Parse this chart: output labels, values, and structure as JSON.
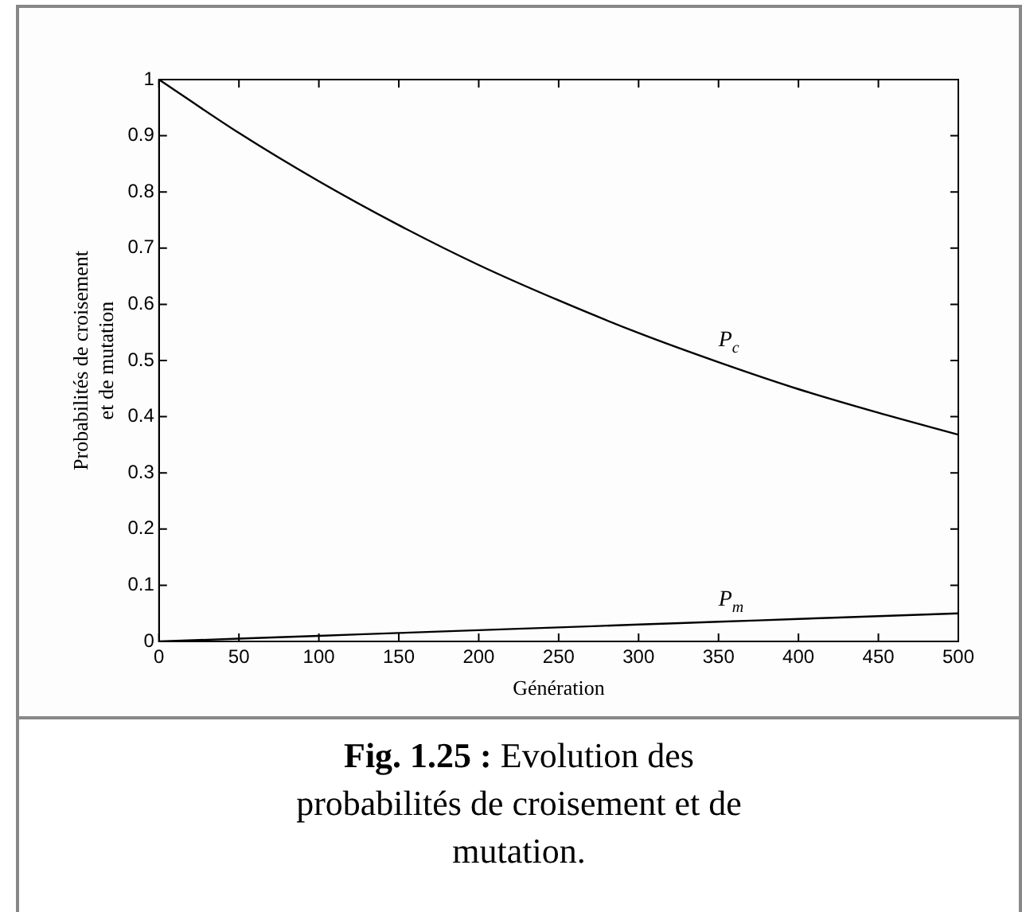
{
  "chart_data": {
    "type": "line",
    "xlabel": "Génération",
    "ylabel": "Probabilités de croisement et de mutation",
    "x": [
      0,
      50,
      100,
      150,
      200,
      250,
      300,
      350,
      400,
      450,
      500
    ],
    "series": [
      {
        "name": "P$_{c}$",
        "color": "#000000",
        "values": [
          1,
          0.905,
          0.819,
          0.741,
          0.67,
          0.607,
          0.549,
          0.497,
          0.449,
          0.407,
          0.368
        ]
      },
      {
        "name": "P$_{m}$",
        "color": "#000000",
        "values": [
          0,
          0.005,
          0.01,
          0.015,
          0.02,
          0.025,
          0.03,
          0.035,
          0.04,
          0.045,
          0.05
        ]
      }
    ],
    "xlim": [
      0,
      500
    ],
    "xticks": [
      0,
      50,
      100,
      150,
      200,
      250,
      300,
      350,
      400,
      450,
      500
    ],
    "ylim": [
      0,
      1
    ],
    "yticks": [
      0,
      0.1,
      0.2,
      0.3,
      0.4,
      0.5,
      0.6,
      0.7,
      0.8,
      0.9,
      1
    ],
    "grid": false,
    "legend": false,
    "marker": "none",
    "line_style": "solid",
    "annotations": [
      "Fig. 1.25 : Evolution des probabilités de croisement et de mutation."
    ]
  }
}
